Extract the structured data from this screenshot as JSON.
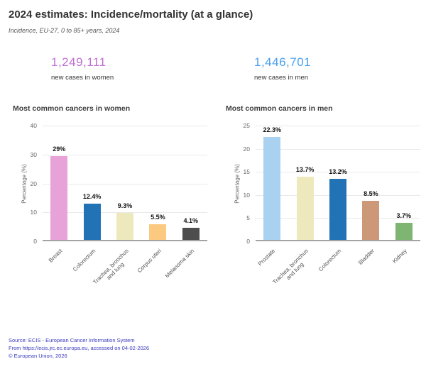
{
  "page": {
    "title": "2024 estimates: Incidence/mortality (at a glance)",
    "subtitle": "Incidence, EU-27, 0 to 85+ years, 2024"
  },
  "stats": {
    "women": {
      "value": "1,249,111",
      "label": "new cases in women",
      "color": "#c06fd0"
    },
    "men": {
      "value": "1,446,701",
      "label": "new cases in men",
      "color": "#4aa0ef"
    }
  },
  "chart_data": [
    {
      "type": "bar",
      "title": "Most common cancers in women",
      "categories": [
        "Breast",
        "Colorectum",
        "Trachea, bronchus\nand lung",
        "Corpus uteri",
        "Melanoma skin"
      ],
      "values": [
        29,
        12.4,
        9.3,
        5.5,
        4.1
      ],
      "value_labels": [
        "29%",
        "12.4%",
        "9.3%",
        "5.5%",
        "4.1%"
      ],
      "bar_colors": [
        "#e7a3d8",
        "#2273b5",
        "#eee9bc",
        "#fbca80",
        "#4d4d4d"
      ],
      "xlabel": "",
      "ylabel": "Percentage (%)",
      "ylim": [
        0,
        40
      ],
      "yticks": [
        0,
        10,
        20,
        30,
        40
      ],
      "grid": true,
      "legend": "none"
    },
    {
      "type": "bar",
      "title": "Most common cancers in men",
      "categories": [
        "Prostate",
        "Trachea, bronchus\nand lung",
        "Colorectum",
        "Bladder",
        "Kidney"
      ],
      "values": [
        22.3,
        13.7,
        13.2,
        8.5,
        3.7
      ],
      "value_labels": [
        "22.3%",
        "13.7%",
        "13.2%",
        "8.5%",
        "3.7%"
      ],
      "bar_colors": [
        "#a8d2f0",
        "#eee9bc",
        "#2273b5",
        "#cc9878",
        "#7fb573"
      ],
      "xlabel": "",
      "ylabel": "Percentage (%)",
      "ylim": [
        0,
        25
      ],
      "yticks": [
        0,
        5,
        10,
        15,
        20,
        25
      ],
      "grid": true,
      "legend": "none"
    }
  ],
  "footer": {
    "lines": [
      "Source: ECIS - European Cancer Information System",
      "From https://ecis.jrc.ec.europa.eu, accessed on 04-02-2026",
      "© European Union, 2026"
    ],
    "color": "#3a3abd"
  }
}
